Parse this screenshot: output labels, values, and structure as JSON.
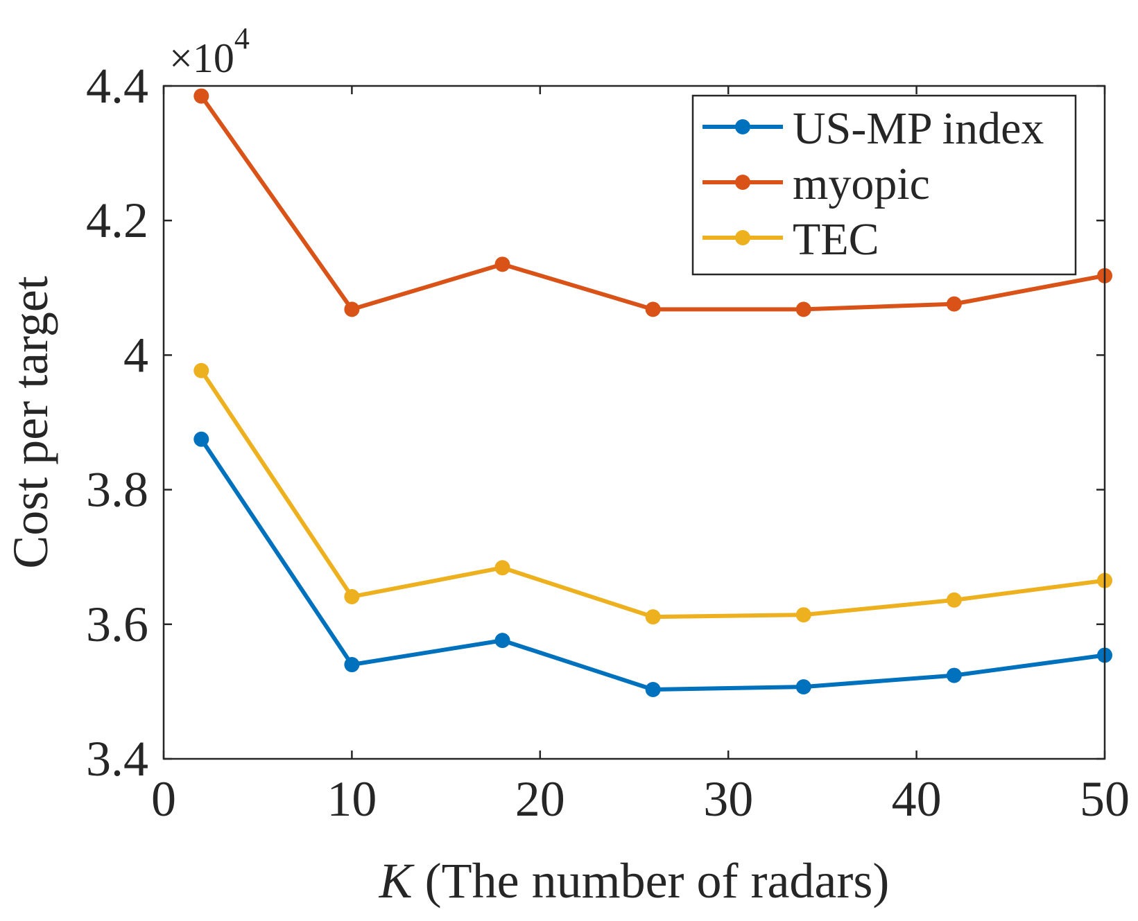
{
  "chart_data": {
    "type": "line",
    "title": "",
    "xlabel_italic": "K",
    "xlabel_rest": " (The number of radars)",
    "ylabel": "Cost per target",
    "y_exponent_prefix": "×10",
    "y_exponent_power": "4",
    "xlim": [
      0,
      50
    ],
    "ylim": [
      3.4,
      4.4
    ],
    "x_ticks": [
      0,
      10,
      20,
      30,
      40,
      50
    ],
    "x_tick_labels": [
      "0",
      "10",
      "20",
      "30",
      "40",
      "50"
    ],
    "y_ticks": [
      3.4,
      3.6,
      3.8,
      4.0,
      4.2,
      4.4
    ],
    "y_tick_labels": [
      "3.4",
      "3.6",
      "3.8",
      "4",
      "4.2",
      "4.4"
    ],
    "x": [
      2,
      10,
      18,
      26,
      34,
      42,
      50
    ],
    "legend_position": "top-right",
    "grid": false,
    "series": [
      {
        "name": "US-MP index",
        "color": "#0072BD",
        "values": [
          3.875,
          3.54,
          3.576,
          3.503,
          3.507,
          3.524,
          3.554
        ]
      },
      {
        "name": "myopic",
        "color": "#D95319",
        "values": [
          4.385,
          4.068,
          4.135,
          4.068,
          4.068,
          4.076,
          4.118
        ]
      },
      {
        "name": "TEC",
        "color": "#EDB120",
        "values": [
          3.977,
          3.641,
          3.684,
          3.611,
          3.614,
          3.636,
          3.665
        ]
      }
    ]
  }
}
